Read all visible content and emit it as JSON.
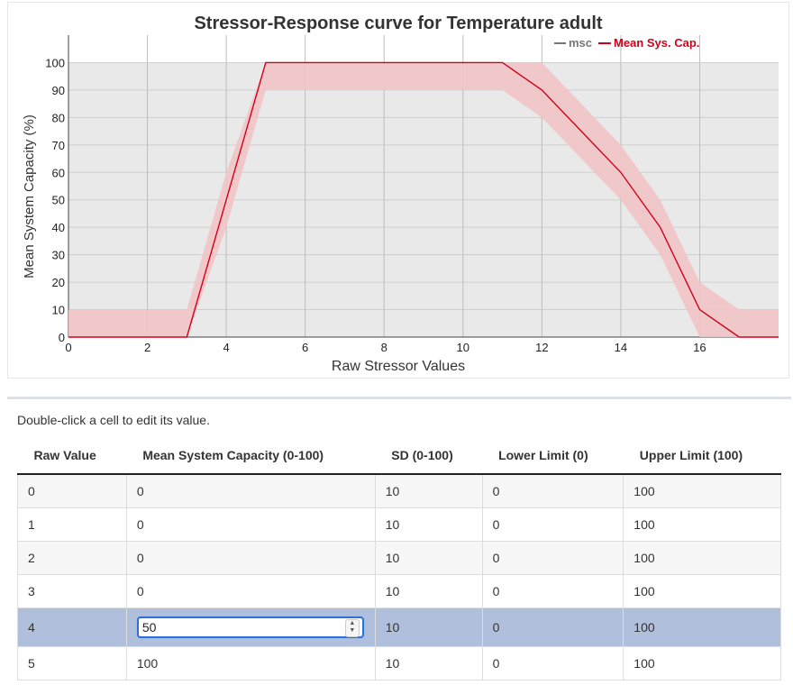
{
  "chart_data": {
    "type": "line",
    "title": "Stressor-Response curve for Temperature adult",
    "xlabel": "Raw Stressor Values",
    "ylabel": "Mean System Capacity (%)",
    "xlim": [
      0,
      18
    ],
    "ylim": [
      0,
      110
    ],
    "x_ticks": [
      "0",
      "2",
      "4",
      "6",
      "8",
      "10",
      "12",
      "14",
      "16"
    ],
    "y_ticks": [
      "0",
      "10",
      "20",
      "30",
      "40",
      "50",
      "60",
      "70",
      "80",
      "90",
      "100"
    ],
    "grid": true,
    "legend_position": "top-right",
    "series": [
      {
        "name": "msc",
        "color": "#777777",
        "x": [],
        "y": []
      },
      {
        "name": "Mean Sys. Cap.",
        "color": "#d0021b",
        "band_color": "#f2c4c6",
        "x": [
          0,
          1,
          2,
          3,
          4,
          5,
          6,
          7,
          8,
          9,
          10,
          11,
          12,
          13,
          14,
          15,
          16,
          17,
          18
        ],
        "y": [
          0,
          0,
          0,
          0,
          50,
          100,
          100,
          100,
          100,
          100,
          100,
          100,
          90,
          75,
          60,
          40,
          10,
          0,
          0
        ],
        "band_x": [
          0,
          3,
          4,
          5,
          11,
          12,
          14,
          15,
          16,
          17,
          18
        ],
        "band_lower": [
          0,
          0,
          40,
          90,
          90,
          80,
          50,
          30,
          0,
          0,
          0
        ],
        "band_upper": [
          10,
          10,
          60,
          100,
          100,
          100,
          70,
          50,
          20,
          10,
          10
        ]
      }
    ]
  },
  "table": {
    "hint": "Double-click a cell to edit its value.",
    "headers": [
      "Raw Value",
      "Mean System Capacity (0-100)",
      "SD (0-100)",
      "Lower Limit (0)",
      "Upper Limit (100)"
    ],
    "rows": [
      [
        "0",
        "0",
        "10",
        "0",
        "100"
      ],
      [
        "1",
        "0",
        "10",
        "0",
        "100"
      ],
      [
        "2",
        "0",
        "10",
        "0",
        "100"
      ],
      [
        "3",
        "0",
        "10",
        "0",
        "100"
      ],
      [
        "4",
        "50",
        "10",
        "0",
        "100"
      ],
      [
        "5",
        "100",
        "10",
        "0",
        "100"
      ]
    ],
    "editing_value": "50"
  }
}
